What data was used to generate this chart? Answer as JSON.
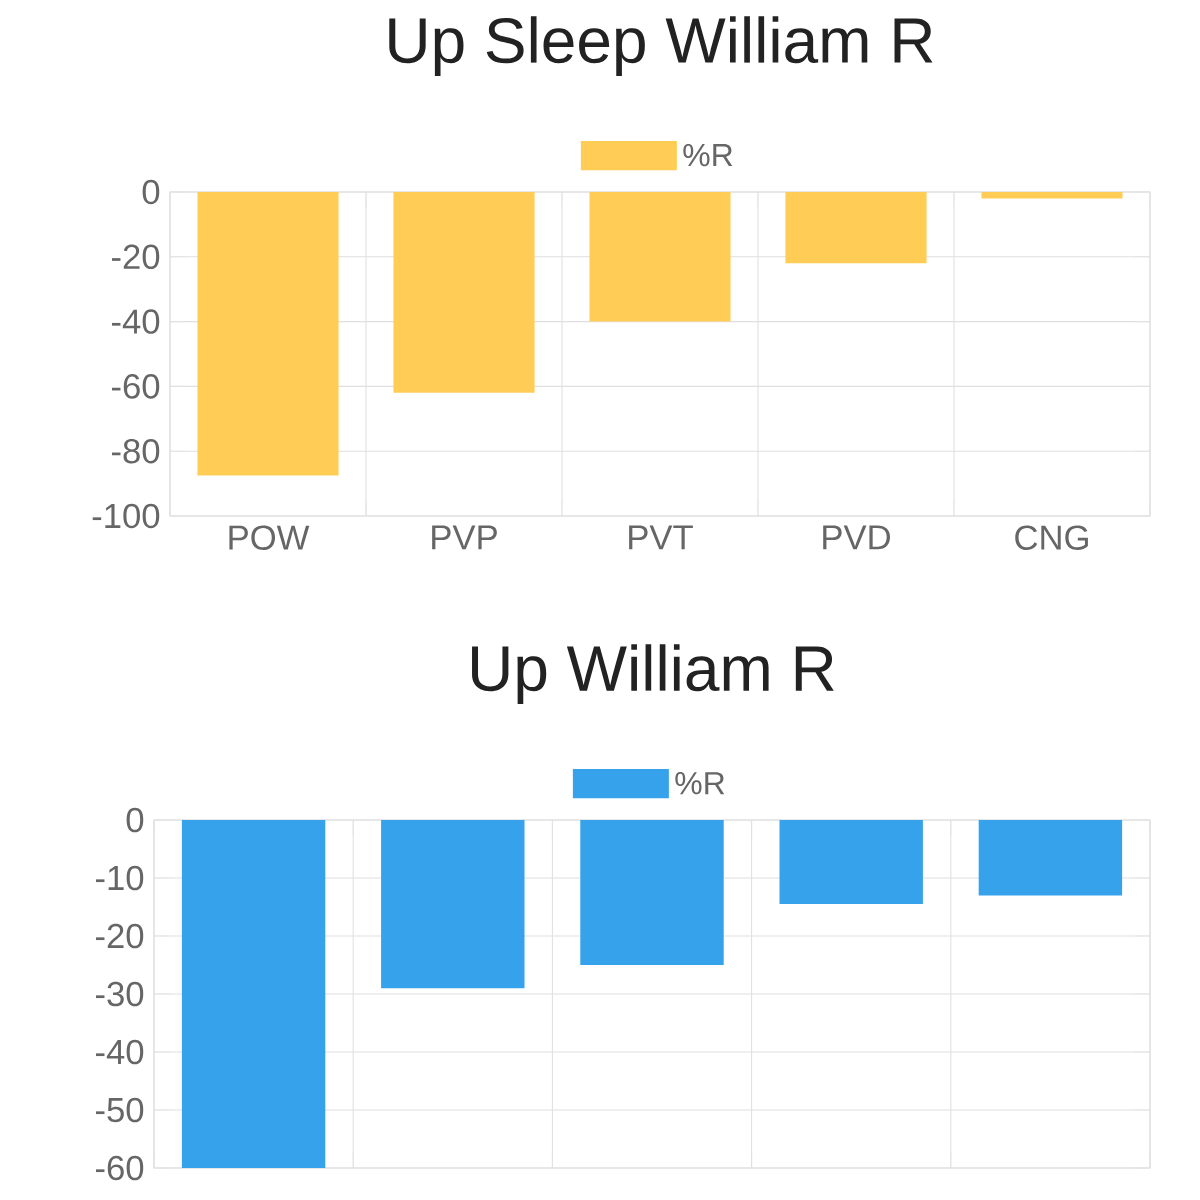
{
  "chart_data": [
    {
      "type": "bar",
      "title": "Up Sleep William R",
      "categories": [
        "POW",
        "PVP",
        "PVT",
        "PVD",
        "CNG"
      ],
      "series": [
        {
          "name": "%R",
          "color": "#ffcd56",
          "values": [
            -87.5,
            -62,
            -40,
            -22,
            -2
          ]
        }
      ],
      "ylim": [
        -100,
        0
      ],
      "yticks": [
        -100,
        -80,
        -60,
        -40,
        -20,
        0
      ],
      "grid": true,
      "legend": "top"
    },
    {
      "type": "bar",
      "title": "Up William R",
      "categories": [
        null,
        null,
        null,
        null,
        null
      ],
      "series": [
        {
          "name": "%R",
          "color": "#36a2eb",
          "values": [
            -60,
            -29,
            -25,
            -14.5,
            -13
          ]
        }
      ],
      "ylim": [
        -60,
        0
      ],
      "yticks": [
        -60,
        -50,
        -40,
        -30,
        -20,
        -10,
        0
      ],
      "grid": true,
      "legend": "top"
    }
  ]
}
